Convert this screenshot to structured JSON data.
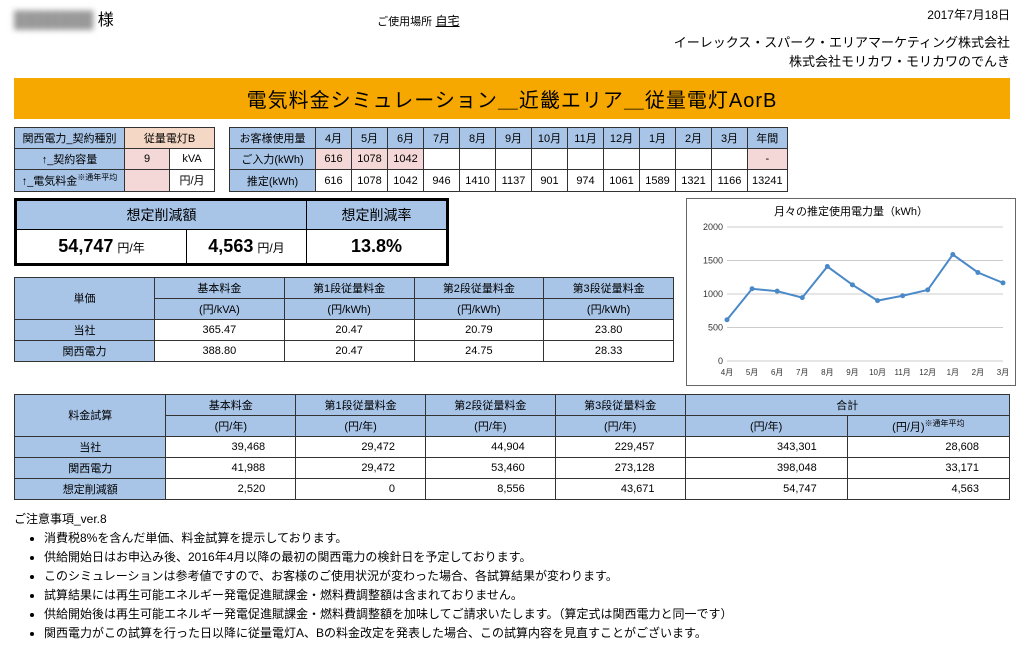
{
  "date": "2017年7月18日",
  "customer_name": "███████",
  "customer_suffix": " 様",
  "location_label": "ご使用場所",
  "location_value": "自宅",
  "company1": "イーレックス・スパーク・エリアマーケティング株式会社",
  "company2": "株式会社モリカワ・モリカワのでんき",
  "banner": "電気料金シミュレーション＿近畿エリア＿従量電灯AorB",
  "contract": {
    "header": "関西電力_契約種別",
    "plan": "従量電灯B",
    "rows": [
      {
        "label": "↑_契約容量",
        "val": "9",
        "unit": "kVA"
      },
      {
        "label": "↑_電気料金",
        "sup": "※通年平均",
        "val": "",
        "unit": "円/月"
      }
    ]
  },
  "usage": {
    "header": "お客様使用量",
    "months": [
      "4月",
      "5月",
      "6月",
      "7月",
      "8月",
      "9月",
      "10月",
      "11月",
      "12月",
      "1月",
      "2月",
      "3月",
      "年間"
    ],
    "input_label": "ご入力(kWh)",
    "input": [
      "616",
      "1078",
      "1042",
      "",
      "",
      "",
      "",
      "",
      "",
      "",
      "",
      "",
      "-"
    ],
    "est_label": "推定(kWh)",
    "est": [
      "616",
      "1078",
      "1042",
      "946",
      "1410",
      "1137",
      "901",
      "974",
      "1061",
      "1589",
      "1321",
      "1166",
      "13241"
    ]
  },
  "chart": {
    "title": "月々の推定使用電力量（kWh）",
    "ymax": 2000,
    "ystep": 500,
    "xlabels": [
      "4月",
      "5月",
      "6月",
      "7月",
      "8月",
      "9月",
      "10月",
      "11月",
      "12月",
      "1月",
      "2月",
      "3月"
    ],
    "values": [
      616,
      1078,
      1042,
      946,
      1410,
      1137,
      901,
      974,
      1061,
      1589,
      1321,
      1166
    ],
    "line_color": "#4a89c8",
    "grid_color": "#cccccc",
    "text_color": "#333333"
  },
  "savings": {
    "amount_hdr": "想定削減額",
    "amount_year": "54,747",
    "amount_year_unit": "円/年",
    "amount_month": "4,563",
    "amount_month_unit": "円/月",
    "rate_hdr": "想定削減率",
    "rate": "13.8%"
  },
  "unit_price": {
    "row_hdr": "単価",
    "cols": [
      {
        "t": "基本料金",
        "u": "(円/kVA)"
      },
      {
        "t": "第1段従量料金",
        "u": "(円/kWh)"
      },
      {
        "t": "第2段従量料金",
        "u": "(円/kWh)"
      },
      {
        "t": "第3段従量料金",
        "u": "(円/kWh)"
      }
    ],
    "rows": [
      {
        "label": "当社",
        "vals": [
          "365.47",
          "20.47",
          "20.79",
          "23.80"
        ]
      },
      {
        "label": "関西電力",
        "vals": [
          "388.80",
          "20.47",
          "24.75",
          "28.33"
        ]
      }
    ]
  },
  "calc": {
    "row_hdr": "料金試算",
    "cols": [
      {
        "t": "基本料金",
        "u": "(円/年)"
      },
      {
        "t": "第1段従量料金",
        "u": "(円/年)"
      },
      {
        "t": "第2段従量料金",
        "u": "(円/年)"
      },
      {
        "t": "第3段従量料金",
        "u": "(円/年)"
      }
    ],
    "total_hdr": "合計",
    "total_cols": [
      {
        "u": "(円/年)"
      },
      {
        "u": "(円/月)",
        "sup": "※通年平均"
      }
    ],
    "rows": [
      {
        "label": "当社",
        "vals": [
          "39,468",
          "29,472",
          "44,904",
          "229,457",
          "343,301",
          "28,608"
        ]
      },
      {
        "label": "関西電力",
        "vals": [
          "41,988",
          "29,472",
          "53,460",
          "273,128",
          "398,048",
          "33,171"
        ]
      },
      {
        "label": "想定削減額",
        "vals": [
          "2,520",
          "0",
          "8,556",
          "43,671",
          "54,747",
          "4,563"
        ]
      }
    ]
  },
  "notes_title": "ご注意事項_ver.8",
  "notes": [
    "消費税8%を含んだ単価、料金試算を提示しております。",
    "供給開始日はお申込み後、2016年4月以降の最初の関西電力の検針日を予定しております。",
    "このシミュレーションは参考値ですので、お客様のご使用状況が変わった場合、各試算結果が変わります。",
    "試算結果には再生可能エネルギー発電促進賦課金・燃料費調整額は含まれておりません。",
    "供給開始後は再生可能エネルギー発電促進賦課金・燃料費調整額を加味してご請求いたします。（算定式は関西電力と同一です）",
    "関西電力がこの試算を行った日以降に従量電灯A、Bの料金改定を発表した場合、この試算内容を見直すことがございます。"
  ]
}
